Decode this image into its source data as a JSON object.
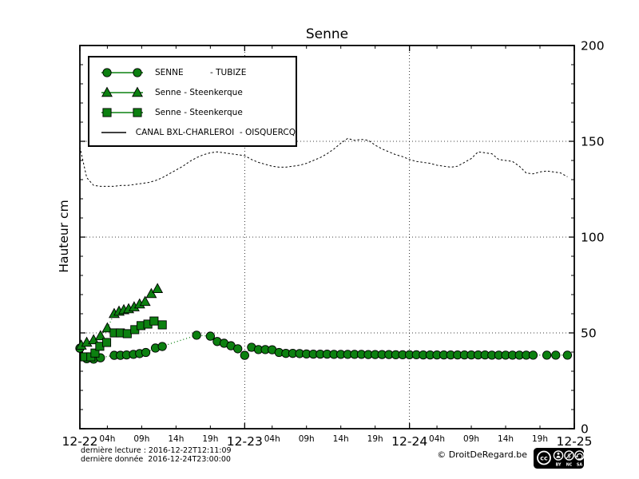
{
  "title": "Senne",
  "y_axis_label": "Hauteur cm",
  "colors": {
    "series_green": "#0c8010",
    "marker_edge": "#000000",
    "canal_line": "#000000",
    "background": "#ffffff",
    "frame": "#000000"
  },
  "legend": {
    "items": [
      {
        "label": "SENNE          - TUBIZE",
        "marker": "circle"
      },
      {
        "label": "Senne - Steenkerque",
        "marker": "triangle"
      },
      {
        "label": "Senne - Steenkerque",
        "marker": "square"
      },
      {
        "label": "CANAL BXL-CHARLEROI  - OISQUERCQ",
        "marker": "line"
      }
    ]
  },
  "footer": {
    "last_reading": "dernière lecture : 2016-12-22T12:11:09",
    "last_data": "dernière donnée  2016-12-24T23:00:00",
    "copyright": "© DroitDeRegard.be",
    "cc_letters": [
      "BY",
      "NC",
      "SA"
    ]
  },
  "chart_data": {
    "type": "line",
    "title": "Senne",
    "xlabel": "",
    "ylabel": "Hauteur cm",
    "ylim": [
      0,
      200
    ],
    "yticks": [
      0,
      50,
      100,
      150,
      200
    ],
    "y_minor_step": 10,
    "ygrid": [
      50,
      100,
      150
    ],
    "x_unit": "hours since 2016-12-22 00:00",
    "xlim": [
      0,
      72
    ],
    "x_day_ticks": [
      {
        "t": 0,
        "label": "12-22"
      },
      {
        "t": 24,
        "label": "12-23"
      },
      {
        "t": 48,
        "label": "12-24"
      },
      {
        "t": 72,
        "label": "12-25"
      }
    ],
    "x_hour_ticks": {
      "offsets": [
        4,
        9,
        14,
        19
      ],
      "labels": [
        "04h",
        "09h",
        "14h",
        "19h"
      ],
      "days": [
        0,
        1,
        2
      ]
    },
    "xgrid_t": [
      24,
      48
    ],
    "grid": true,
    "legend_position": "upper left",
    "series": [
      {
        "name": "SENNE - TUBIZE",
        "marker": "circle",
        "color": "#0c8010",
        "linestyle": "dotted",
        "points": [
          [
            0,
            42,
            1
          ],
          [
            1,
            36.5,
            1
          ],
          [
            2,
            36.3,
            1
          ],
          [
            3,
            37,
            1
          ],
          [
            4,
            37.7,
            0
          ],
          [
            5,
            38.3,
            1
          ],
          [
            5.9,
            38.3,
            1
          ],
          [
            6.8,
            38.5,
            1
          ],
          [
            7.8,
            38.8,
            1
          ],
          [
            8.7,
            39.2,
            1
          ],
          [
            9.6,
            39.8,
            1
          ],
          [
            11,
            42.1,
            1
          ],
          [
            12,
            42.9,
            1
          ],
          [
            13.5,
            44.8,
            0
          ],
          [
            15,
            46.5,
            0
          ],
          [
            17,
            48.8,
            1
          ],
          [
            19,
            48.3,
            1
          ],
          [
            20,
            45.5,
            1
          ],
          [
            21,
            44.6,
            1
          ],
          [
            22,
            43.3,
            1
          ],
          [
            23,
            41.7,
            1
          ],
          [
            24,
            38.3,
            1
          ],
          [
            25,
            42.5,
            1
          ],
          [
            26,
            41.3,
            1
          ],
          [
            27,
            41.3,
            1
          ],
          [
            28,
            41.2,
            1
          ],
          [
            29,
            39.8,
            1
          ],
          [
            30,
            39.3,
            1
          ],
          [
            31,
            39.3,
            1
          ],
          [
            32,
            39.2,
            1
          ],
          [
            33,
            39,
            1
          ],
          [
            34,
            38.9,
            1
          ],
          [
            35,
            38.9,
            1
          ],
          [
            36,
            38.9,
            1
          ],
          [
            37,
            38.8,
            1
          ],
          [
            38,
            38.8,
            1
          ],
          [
            39,
            38.8,
            1
          ],
          [
            40,
            38.8,
            1
          ],
          [
            41,
            38.8,
            1
          ],
          [
            42,
            38.7,
            1
          ],
          [
            43,
            38.7,
            1
          ],
          [
            44,
            38.7,
            1
          ],
          [
            45,
            38.7,
            1
          ],
          [
            46,
            38.6,
            1
          ],
          [
            47,
            38.6,
            1
          ],
          [
            48,
            38.6,
            1
          ],
          [
            49,
            38.6,
            1
          ],
          [
            50,
            38.5,
            1
          ],
          [
            51,
            38.5,
            1
          ],
          [
            52,
            38.5,
            1
          ],
          [
            53,
            38.5,
            1
          ],
          [
            54,
            38.5,
            1
          ],
          [
            55,
            38.5,
            1
          ],
          [
            56,
            38.5,
            1
          ],
          [
            57,
            38.5,
            1
          ],
          [
            58,
            38.5,
            1
          ],
          [
            59,
            38.5,
            1
          ],
          [
            60,
            38.4,
            1
          ],
          [
            61,
            38.4,
            1
          ],
          [
            62,
            38.4,
            1
          ],
          [
            63,
            38.4,
            1
          ],
          [
            64,
            38.4,
            1
          ],
          [
            65,
            38.4,
            1
          ],
          [
            66,
            38.4,
            1
          ],
          [
            68,
            38.4,
            1
          ],
          [
            69.3,
            38.4,
            1
          ],
          [
            71,
            38.4,
            1
          ]
        ]
      },
      {
        "name": "Senne - Steenkerque",
        "marker": "triangle",
        "color": "#0c8010",
        "linestyle": "dotted",
        "points": [
          [
            0.2,
            43.5,
            1
          ],
          [
            1,
            45,
            1
          ],
          [
            2,
            46.3,
            1
          ],
          [
            3,
            48.4,
            1
          ],
          [
            4,
            52.5,
            1
          ],
          [
            5,
            60,
            1
          ],
          [
            5.7,
            61.2,
            1
          ],
          [
            6.4,
            62,
            1
          ],
          [
            7.1,
            62.5,
            1
          ],
          [
            7.9,
            63.5,
            1
          ],
          [
            8.7,
            65,
            1
          ],
          [
            9.5,
            66.3,
            1
          ],
          [
            10.4,
            70.4,
            1
          ],
          [
            11.3,
            73,
            1
          ]
        ]
      },
      {
        "name": "Senne - Steenkerque",
        "marker": "square",
        "color": "#0c8010",
        "linestyle": "dotted",
        "points": [
          [
            0.7,
            37.5,
            1
          ],
          [
            1.6,
            37.5,
            1
          ],
          [
            2.2,
            39.5,
            1
          ],
          [
            2.9,
            43,
            1
          ],
          [
            3.9,
            45,
            1
          ],
          [
            5,
            50,
            1
          ],
          [
            5.9,
            50,
            1
          ],
          [
            6.9,
            49.6,
            1
          ],
          [
            8,
            51.7,
            1
          ],
          [
            8.9,
            53.8,
            1
          ],
          [
            9.9,
            54.6,
            1
          ],
          [
            10.8,
            56.2,
            1
          ],
          [
            12,
            54.2,
            1
          ]
        ]
      },
      {
        "name": "CANAL BXL-CHARLEROI - OISQUERCQ",
        "marker": "none",
        "color": "#000000",
        "linestyle": "dashed",
        "t0": 0,
        "dt": 1,
        "values": [
          147,
          131,
          127,
          126.5,
          126.5,
          126.5,
          127,
          127,
          127.5,
          128,
          128.5,
          129.5,
          131,
          133,
          135,
          137,
          139.5,
          141.5,
          143,
          144,
          144.5,
          144,
          143.5,
          143,
          142.5,
          140.5,
          139,
          138,
          137,
          136.5,
          136.5,
          137,
          137.5,
          138.5,
          140,
          141.5,
          143.5,
          146,
          149,
          151.5,
          150.5,
          151,
          150.5,
          148,
          146,
          144.5,
          143,
          142,
          140.5,
          139.5,
          139,
          138.5,
          137.5,
          137,
          136.5,
          137,
          139,
          141,
          144.5,
          144,
          143.5,
          140.5,
          140,
          139.5,
          137,
          133.5,
          133,
          134,
          134.5,
          134,
          133.5,
          131.5
        ]
      }
    ]
  }
}
